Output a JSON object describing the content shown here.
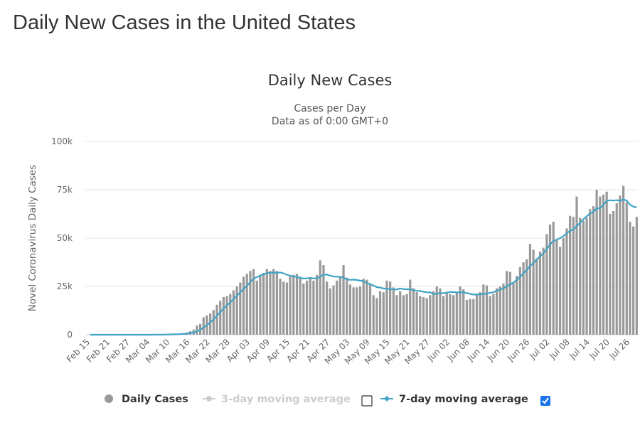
{
  "page": {
    "title": "Daily New Cases in the United States"
  },
  "chart_data": {
    "type": "bar",
    "title": "Daily New Cases",
    "subtitle": [
      "Cases per Day",
      "Data as of 0:00 GMT+0"
    ],
    "ylabel": "Novel Coronavirus Daily Cases",
    "xlabel": "",
    "ylim": [
      0,
      100000
    ],
    "yticks": [
      0,
      25000,
      50000,
      75000,
      100000
    ],
    "ytick_labels": [
      "0",
      "25k",
      "50k",
      "75k",
      "100k"
    ],
    "grid": true,
    "start_date": "2020-02-15",
    "xtick_labels": [
      "Feb 15",
      "Feb 21",
      "Feb 27",
      "Mar 04",
      "Mar 10",
      "Mar 16",
      "Mar 22",
      "Mar 28",
      "Apr 03",
      "Apr 09",
      "Apr 15",
      "Apr 21",
      "Apr 27",
      "May 03",
      "May 09",
      "May 15",
      "May 21",
      "May 27",
      "Jun 02",
      "Jun 08",
      "Jun 14",
      "Jun 20",
      "Jun 26",
      "Jul 02",
      "Jul 08",
      "Jul 14",
      "Jul 20",
      "Jul 26"
    ],
    "series": [
      {
        "name": "Daily Cases",
        "type": "bar",
        "color": "#999999",
        "values": [
          0,
          0,
          0,
          0,
          0,
          0,
          0,
          0,
          0,
          0,
          0,
          0,
          0,
          0,
          0,
          10,
          20,
          30,
          60,
          70,
          100,
          120,
          150,
          200,
          300,
          400,
          500,
          700,
          900,
          1200,
          1800,
          2700,
          4800,
          5600,
          9000,
          10000,
          11000,
          12800,
          15500,
          17500,
          19500,
          20000,
          21000,
          23000,
          25000,
          27000,
          30000,
          31500,
          33000,
          34000,
          28000,
          30500,
          32000,
          34000,
          33000,
          34000,
          33000,
          29000,
          27500,
          27000,
          30000,
          31000,
          31500,
          30000,
          26500,
          28000,
          29000,
          28000,
          31000,
          38500,
          36000,
          27500,
          24000,
          25500,
          28000,
          30000,
          36000,
          29500,
          26000,
          24500,
          24500,
          25000,
          29000,
          28500,
          26000,
          20500,
          19000,
          22500,
          22000,
          28000,
          27500,
          24500,
          20500,
          22500,
          20500,
          21000,
          28500,
          24000,
          22000,
          20000,
          19500,
          19000,
          20500,
          22500,
          25000,
          24000,
          20000,
          21500,
          21000,
          20500,
          21500,
          25000,
          23500,
          18000,
          18500,
          18500,
          21000,
          22000,
          26000,
          25500,
          20000,
          21000,
          24000,
          25000,
          26500,
          33000,
          32500,
          27000,
          30500,
          35000,
          37500,
          39000,
          47000,
          44000,
          39500,
          43000,
          45000,
          52000,
          57000,
          58500,
          49000,
          45500,
          50000,
          55000,
          61500,
          61000,
          71500,
          60500,
          59000,
          60500,
          65000,
          66500,
          75000,
          71500,
          72500,
          74000,
          62500,
          64000,
          68000,
          72000,
          77000,
          68500,
          58500,
          56000,
          61000
        ]
      },
      {
        "name": "3-day moving average",
        "type": "line",
        "color": "#cccccc",
        "visible": false
      },
      {
        "name": "7-day moving average",
        "type": "line",
        "color": "#3fa3c4",
        "visible": true
      }
    ],
    "legend": {
      "position": "bottom",
      "items": [
        {
          "label": "Daily Cases",
          "active": true
        },
        {
          "label": "3-day moving average",
          "active": false,
          "checked": false
        },
        {
          "label": "7-day moving average",
          "active": true,
          "checked": true
        }
      ]
    }
  }
}
